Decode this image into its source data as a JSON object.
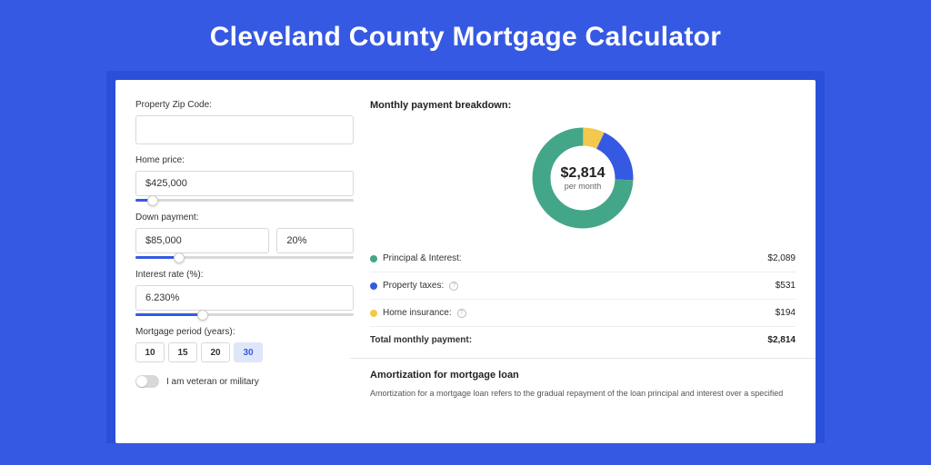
{
  "title": "Cleveland County Mortgage Calculator",
  "colors": {
    "page_bg": "#3659e3",
    "frame_bg": "#2a4fd8",
    "panel_bg": "#ffffff",
    "accent": "#3659e3",
    "principal": "#44a688",
    "taxes": "#3659e3",
    "insurance": "#f2c94c",
    "text": "#222222",
    "border": "#d8d8d8"
  },
  "form": {
    "zip": {
      "label": "Property Zip Code:",
      "value": ""
    },
    "home_price": {
      "label": "Home price:",
      "value": "$425,000",
      "slider_pct": 8
    },
    "down_payment": {
      "label": "Down payment:",
      "amount": "$85,000",
      "pct": "20%",
      "slider_pct": 20
    },
    "interest_rate": {
      "label": "Interest rate (%):",
      "value": "6.230%",
      "slider_pct": 31
    },
    "period": {
      "label": "Mortgage period (years):",
      "options": [
        "10",
        "15",
        "20",
        "30"
      ],
      "selected": "30"
    },
    "veteran": {
      "label": "I am veteran or military",
      "checked": false
    }
  },
  "breakdown": {
    "title": "Monthly payment breakdown:",
    "donut": {
      "amount": "$2,814",
      "sub": "per month",
      "segments": [
        {
          "key": "principal",
          "color": "#44a688",
          "pct": 74.3
        },
        {
          "key": "taxes",
          "color": "#3659e3",
          "pct": 18.8
        },
        {
          "key": "insurance",
          "color": "#f2c94c",
          "pct": 6.9
        }
      ]
    },
    "items": [
      {
        "label": "Principal & Interest:",
        "color": "#44a688",
        "value": "$2,089",
        "info": false
      },
      {
        "label": "Property taxes:",
        "color": "#3659e3",
        "value": "$531",
        "info": true
      },
      {
        "label": "Home insurance:",
        "color": "#f2c94c",
        "value": "$194",
        "info": true
      }
    ],
    "total": {
      "label": "Total monthly payment:",
      "value": "$2,814"
    }
  },
  "amortization": {
    "title": "Amortization for mortgage loan",
    "text": "Amortization for a mortgage loan refers to the gradual repayment of the loan principal and interest over a specified"
  }
}
